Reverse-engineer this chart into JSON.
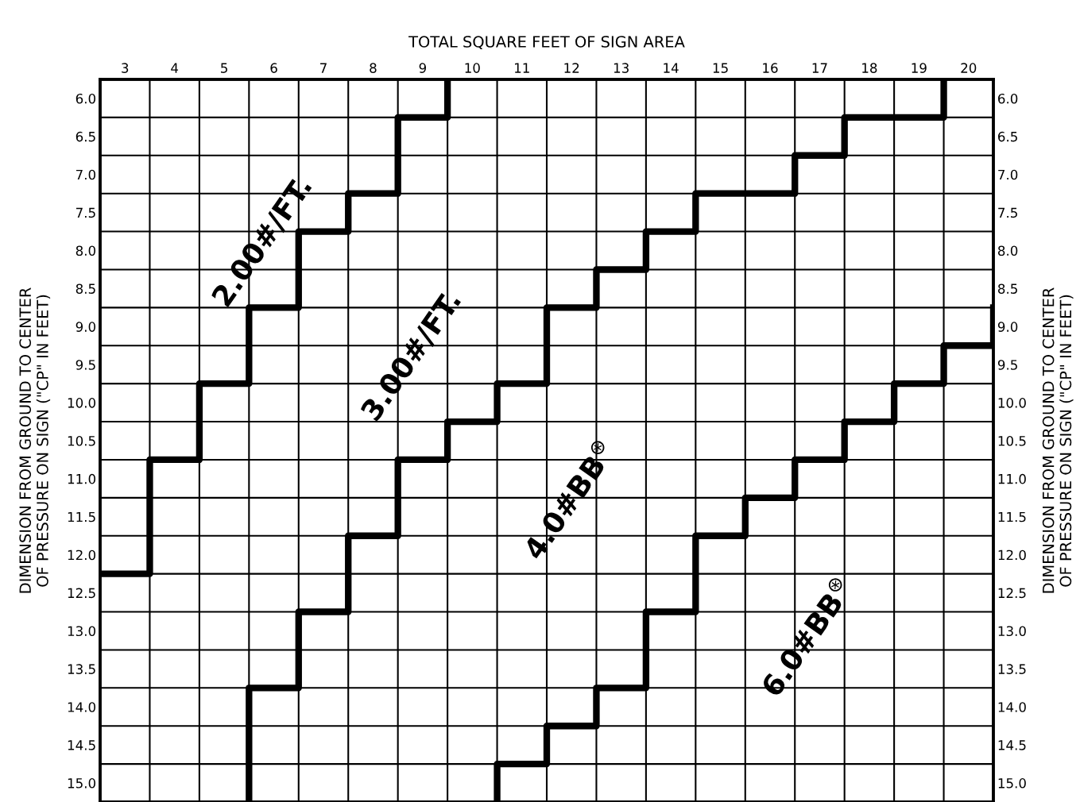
{
  "chart_data": {
    "type": "step",
    "xlabel": "TOTAL SQUARE FEET OF SIGN AREA",
    "ylabel": "DIMENSION FROM GROUND TO CENTER\nOF PRESSURE ON SIGN (\"CP\" IN FEET)",
    "y2label": "DIMENSION FROM GROUND TO CENTER\nOF PRESSURE ON SIGN (\"CP\" IN FEET)",
    "xlim": [
      2.5,
      20.5
    ],
    "xticks": [
      3,
      4,
      5,
      6,
      7,
      8,
      9,
      10,
      11,
      12,
      13,
      14,
      15,
      16,
      17,
      18,
      19,
      20
    ],
    "ylim": [
      15.25,
      5.75
    ],
    "yticks": [
      {
        "value": 6,
        "label": "6.0"
      },
      6.5,
      {
        "value": 7,
        "label": "7.0"
      },
      7.5,
      {
        "value": 8,
        "label": "8.0"
      },
      8.5,
      {
        "value": 9,
        "label": "9.0"
      },
      9.5,
      {
        "value": 10,
        "label": "10.0"
      },
      10.5,
      {
        "value": 11,
        "label": "11.0"
      },
      11.5,
      {
        "value": 12,
        "label": "12.0"
      },
      12.5,
      {
        "value": 13,
        "label": "13.0"
      },
      13.5,
      {
        "value": 14,
        "label": "14.0"
      },
      14.5,
      {
        "value": 15,
        "label": "15.0"
      }
    ],
    "y2lim": [
      15.25,
      5.75
    ],
    "y2ticks": [
      {
        "value": 6,
        "label": "6.0"
      },
      6.5,
      {
        "value": 7,
        "label": "7.0"
      },
      7.5,
      {
        "value": 8,
        "label": "8.0"
      },
      8.5,
      {
        "value": 9,
        "label": "9.0"
      },
      9.5,
      {
        "value": 10,
        "label": "10.0"
      },
      10.5,
      {
        "value": 11,
        "label": "11.0"
      },
      11.5,
      {
        "value": 12,
        "label": "12.0"
      },
      12.5,
      {
        "value": 13,
        "label": "13.0"
      },
      13.5,
      {
        "value": 14,
        "label": "14.0"
      },
      14.5,
      {
        "value": 15,
        "label": "15.0"
      }
    ],
    "grid": true,
    "legend": false,
    "marker": "none",
    "line_style": "solid",
    "series": [
      {
        "color": "#000000",
        "x": [
          2.5,
          3.5,
          4.5,
          5.5,
          6.5,
          7.5,
          8.5,
          9.5
        ],
        "values": [
          12.25,
          10.75,
          9.75,
          8.75,
          7.75,
          7.25,
          6.25,
          5.75
        ]
      },
      {
        "color": "#000000",
        "x": [
          5.5,
          5.5,
          6.5,
          7.5,
          8.5,
          9.5,
          10.5,
          11.5,
          12.5,
          13.5,
          14.5,
          16.5,
          17.5,
          19.5
        ],
        "values": [
          15.25,
          13.75,
          12.75,
          11.75,
          10.75,
          10.25,
          9.75,
          8.75,
          8.25,
          7.75,
          7.25,
          6.75,
          6.25,
          5.75
        ]
      },
      {
        "color": "#000000",
        "x": [
          10.5,
          10.5,
          11.5,
          12.5,
          13.5,
          14.5,
          15.5,
          16.5,
          17.5,
          18.5,
          19.5,
          20.5
        ],
        "values": [
          15.25,
          14.75,
          14.25,
          13.75,
          12.75,
          11.75,
          11.25,
          10.75,
          10.25,
          9.75,
          9.25,
          8.75
        ]
      }
    ],
    "annotations": [
      "2.00#/FT.",
      "3.00#/FT.",
      "4.0#BB$^{⊛}$",
      "6.0#BB$^{⊛}$"
    ]
  }
}
